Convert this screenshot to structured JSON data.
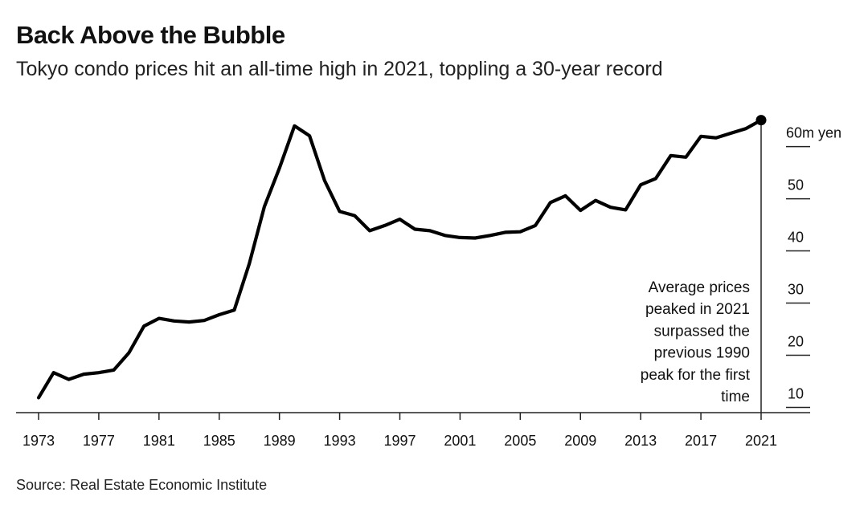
{
  "title": "Back Above the Bubble",
  "subtitle": "Tokyo condo prices hit an all-time high in 2021, toppling a 30-year record",
  "source": "Source: Real Estate Economic Institute",
  "chart_data": {
    "type": "line",
    "title": "Back Above the Bubble",
    "subtitle": "Tokyo condo prices hit an all-time high in 2021, toppling a 30-year record",
    "xlabel": "",
    "ylabel": "",
    "unit_label": "60m yen",
    "xlim": [
      1973,
      2021
    ],
    "ylim": [
      7,
      60
    ],
    "x_ticks": [
      "1973",
      "1977",
      "1981",
      "1985",
      "1989",
      "1993",
      "1997",
      "2001",
      "2005",
      "2009",
      "2013",
      "2017",
      "2021"
    ],
    "y_ticks": [
      {
        "value": 60,
        "label": "60m yen"
      },
      {
        "value": 50,
        "label": "50"
      },
      {
        "value": 40,
        "label": "40"
      },
      {
        "value": 30,
        "label": "30"
      },
      {
        "value": 20,
        "label": "20"
      },
      {
        "value": 10,
        "label": "10"
      }
    ],
    "grid": false,
    "annotation": {
      "lines": [
        "Average prices",
        "peaked in 2021",
        "surpassed the",
        "previous 1990",
        "peak for the first",
        "time"
      ],
      "x": 2021
    },
    "series": [
      {
        "color": "#000000",
        "x": [
          1973,
          1974,
          1975,
          1976,
          1977,
          1978,
          1979,
          1980,
          1981,
          1982,
          1983,
          1984,
          1985,
          1986,
          1987,
          1988,
          1989,
          1990,
          1991,
          1992,
          1993,
          1994,
          1995,
          1996,
          1997,
          1998,
          1999,
          2000,
          2001,
          2002,
          2003,
          2004,
          2005,
          2006,
          2007,
          2008,
          2009,
          2010,
          2011,
          2012,
          2013,
          2014,
          2015,
          2016,
          2017,
          2018,
          2019,
          2020,
          2021
        ],
        "values": [
          9.1,
          13.9,
          12.6,
          13.6,
          13.9,
          14.4,
          17.7,
          22.8,
          24.3,
          23.8,
          23.6,
          23.9,
          25.0,
          25.9,
          34.8,
          45.7,
          53.1,
          61.2,
          59.3,
          50.7,
          44.8,
          44.0,
          41.1,
          42.1,
          43.3,
          41.4,
          41.1,
          40.2,
          39.8,
          39.7,
          40.2,
          40.8,
          40.9,
          42.1,
          46.5,
          47.8,
          45.0,
          46.9,
          45.6,
          45.1,
          49.9,
          51.1,
          55.5,
          55.2,
          59.2,
          58.9,
          59.8,
          60.7,
          62.3
        ]
      }
    ]
  }
}
